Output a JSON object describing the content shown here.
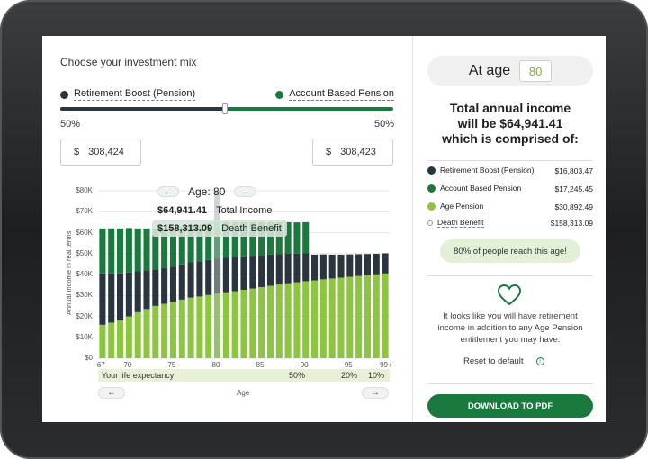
{
  "left": {
    "title": "Choose your investment mix",
    "option_a": {
      "label": "Retirement Boost (Pension)",
      "percent": "50%",
      "amount": "308,424",
      "color": "#2a3540"
    },
    "option_b": {
      "label": "Account Based Pension",
      "percent": "50%",
      "amount": "308,423",
      "color": "#1a7a3e"
    },
    "currency": "$",
    "slider_fraction": 0.5
  },
  "chart_data": {
    "type": "bar",
    "ylabel": "Annual Income in real terms",
    "xlabel": "Age",
    "y_ticks": [
      "$80K",
      "$70K",
      "$60K",
      "$50K",
      "$40K",
      "$30K",
      "$20K",
      "$10K",
      "$0"
    ],
    "x_ticks": [
      "67",
      "70",
      "75",
      "80",
      "85",
      "90",
      "95",
      "99+"
    ],
    "ylim": [
      0,
      80000
    ],
    "ages": [
      67,
      68,
      69,
      70,
      71,
      72,
      73,
      74,
      75,
      76,
      77,
      78,
      79,
      80,
      81,
      82,
      83,
      84,
      85,
      86,
      87,
      88,
      89,
      90,
      91,
      92,
      93,
      94,
      95,
      96,
      97,
      98,
      99
    ],
    "series": [
      {
        "name": "Age Pension",
        "color": "#8cc63f",
        "values": [
          16000,
          17000,
          18000,
          20000,
          22000,
          23500,
          25000,
          26000,
          27000,
          28000,
          29000,
          29500,
          30200,
          30892,
          31500,
          32000,
          32700,
          33300,
          34000,
          34600,
          35200,
          35800,
          36300,
          36800,
          37200,
          37700,
          38100,
          38500,
          38900,
          39300,
          39700,
          40100,
          40500
        ]
      },
      {
        "name": "Retirement Boost (Pension)",
        "color": "#2a3540",
        "values": [
          24500,
          23500,
          22500,
          21000,
          19500,
          18500,
          17500,
          17000,
          16800,
          16800,
          16800,
          16800,
          16800,
          16803,
          16600,
          16400,
          16000,
          15700,
          15300,
          14900,
          14500,
          14100,
          13700,
          13300,
          12300,
          11900,
          11400,
          11000,
          10700,
          10400,
          10100,
          9800,
          9600
        ]
      },
      {
        "name": "Account Based Pension",
        "color": "#1a7a3e",
        "values": [
          21500,
          21500,
          21500,
          21200,
          20500,
          20000,
          19500,
          19000,
          18500,
          18000,
          17700,
          17500,
          17300,
          17245,
          16900,
          16600,
          16300,
          16000,
          15700,
          15500,
          15300,
          15100,
          14900,
          14900,
          0,
          0,
          0,
          0,
          0,
          0,
          0,
          0,
          0
        ]
      }
    ],
    "selected_age": 80,
    "tooltip": {
      "age_label": "Age: 80",
      "total_value": "$64,941.41",
      "total_label": "Total Income",
      "death_value": "$158,313.09",
      "death_label": "Death Benefit"
    },
    "life_expectancy": {
      "label": "Your life expectancy",
      "markers": [
        {
          "age": 90,
          "text": "50%"
        },
        {
          "age": 95,
          "text": "20%"
        },
        {
          "age": 99,
          "text": "10%"
        }
      ]
    }
  },
  "right": {
    "at_age_label": "At age",
    "age_value": "80",
    "headline_line1": "Total annual income",
    "headline_line2": "will be $64,941.41",
    "headline_line3": "which is comprised of:",
    "items": [
      {
        "label": "Retirement Boost (Pension)",
        "value": "$16,803.47",
        "color": "#2a3540"
      },
      {
        "label": "Account Based Pension",
        "value": "$17,245.45",
        "color": "#1a7a3e"
      },
      {
        "label": "Age Pension",
        "value": "$30,892.49",
        "color": "#8cc63f"
      },
      {
        "label": "Death Benefit",
        "value": "$158,313.09",
        "color": "#ffffff"
      }
    ],
    "reach_text": "80% of people reach this age!",
    "message": "It looks like you will have retirement income in addition to any Age Pension entitlement you may have.",
    "reset_label": "Reset to default",
    "download_label": "DOWNLOAD TO PDF"
  }
}
